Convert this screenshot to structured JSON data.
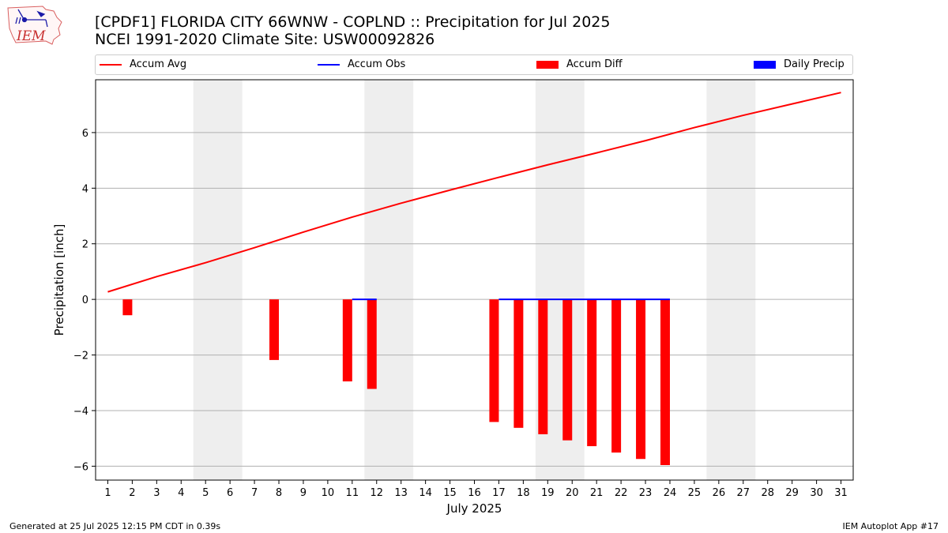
{
  "header": {
    "title_line1": "[CPDF1] FLORIDA CITY 66WNW - COPLND :: Precipitation for Jul 2025",
    "title_line2": "NCEI 1991-2020 Climate Site: USW00092826",
    "logo_text": "IEM"
  },
  "legend": [
    {
      "label": "Accum Avg",
      "color": "#ff0000",
      "kind": "line"
    },
    {
      "label": "Accum Obs",
      "color": "#0000ff",
      "kind": "line"
    },
    {
      "label": "Accum Diff",
      "color": "#ff0000",
      "kind": "patch"
    },
    {
      "label": "Daily Precip",
      "color": "#0000ff",
      "kind": "patch"
    }
  ],
  "chart_data": {
    "type": "bar",
    "xlabel": "July 2025",
    "ylabel": "Precipitation [inch]",
    "xlim": [
      0.5,
      31.5
    ],
    "ylim": [
      -6.5,
      7.9
    ],
    "yticks": [
      -6,
      -4,
      -2,
      0,
      2,
      4,
      6
    ],
    "ytick_labels": [
      "−6",
      "−4",
      "−2",
      "0",
      "2",
      "4",
      "6"
    ],
    "x_ticks": [
      1,
      2,
      3,
      4,
      5,
      6,
      7,
      8,
      9,
      10,
      11,
      12,
      13,
      14,
      15,
      16,
      17,
      18,
      19,
      20,
      21,
      22,
      23,
      24,
      25,
      26,
      27,
      28,
      29,
      30,
      31
    ],
    "grid": "horizontal",
    "weekend_shading": [
      [
        4.5,
        6.5
      ],
      [
        11.5,
        13.5
      ],
      [
        18.5,
        20.5
      ],
      [
        25.5,
        27.5
      ]
    ],
    "accum_avg": {
      "days": [
        1,
        3,
        5,
        7,
        9,
        11,
        13,
        15,
        17,
        19,
        21,
        23,
        25,
        27,
        29,
        31
      ],
      "values": [
        0.27,
        0.82,
        1.32,
        1.86,
        2.42,
        2.96,
        3.46,
        3.93,
        4.39,
        4.84,
        5.27,
        5.71,
        6.18,
        6.62,
        7.03,
        7.44
      ]
    },
    "accum_obs": [
      {
        "days": [
          11,
          12
        ],
        "values": [
          0,
          0
        ]
      },
      {
        "days": [
          17,
          24
        ],
        "values": [
          0,
          0
        ]
      }
    ],
    "accum_diff": {
      "days": [
        2,
        8,
        11,
        12,
        17,
        18,
        19,
        20,
        21,
        22,
        23,
        24
      ],
      "values": [
        -0.57,
        -2.18,
        -2.95,
        -3.22,
        -4.41,
        -4.62,
        -4.85,
        -5.07,
        -5.28,
        -5.51,
        -5.74,
        -5.96
      ]
    },
    "daily_precip": []
  },
  "footer": {
    "generated": "Generated at 25 Jul 2025 12:15 PM CDT in 0.39s",
    "app": "IEM Autoplot App #17"
  }
}
